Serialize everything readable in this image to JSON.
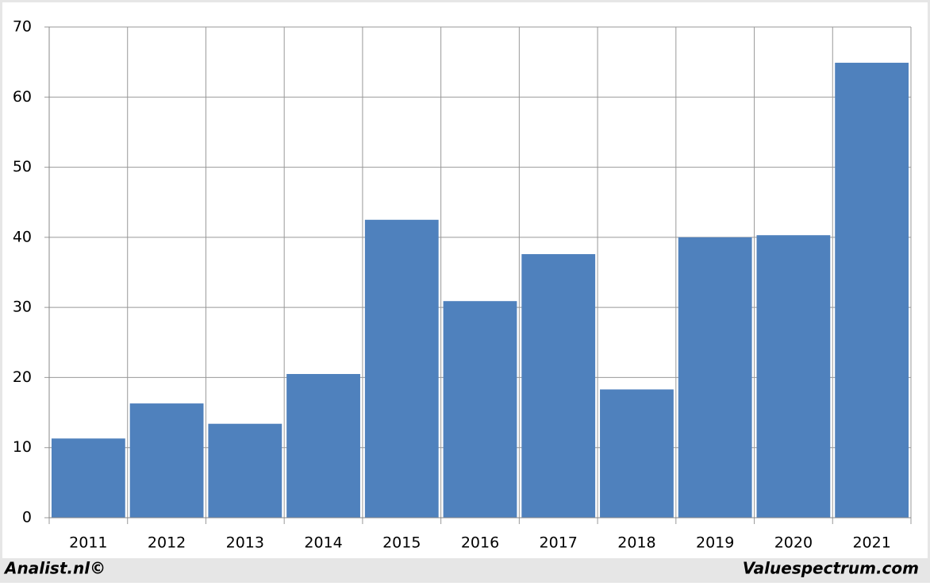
{
  "chart_data": {
    "type": "bar",
    "categories": [
      "2011",
      "2012",
      "2013",
      "2014",
      "2015",
      "2016",
      "2017",
      "2018",
      "2019",
      "2020",
      "2021"
    ],
    "values": [
      11.3,
      16.3,
      13.4,
      20.5,
      42.5,
      30.9,
      37.6,
      18.3,
      40.0,
      40.3,
      64.9
    ],
    "color": "#4f81bd",
    "ylim": [
      0,
      70
    ],
    "yticks": [
      0,
      10,
      20,
      30,
      40,
      50,
      60,
      70
    ],
    "grid": true
  },
  "footer": {
    "left": "Analist.nl©",
    "right": "Valuespectrum.com"
  }
}
